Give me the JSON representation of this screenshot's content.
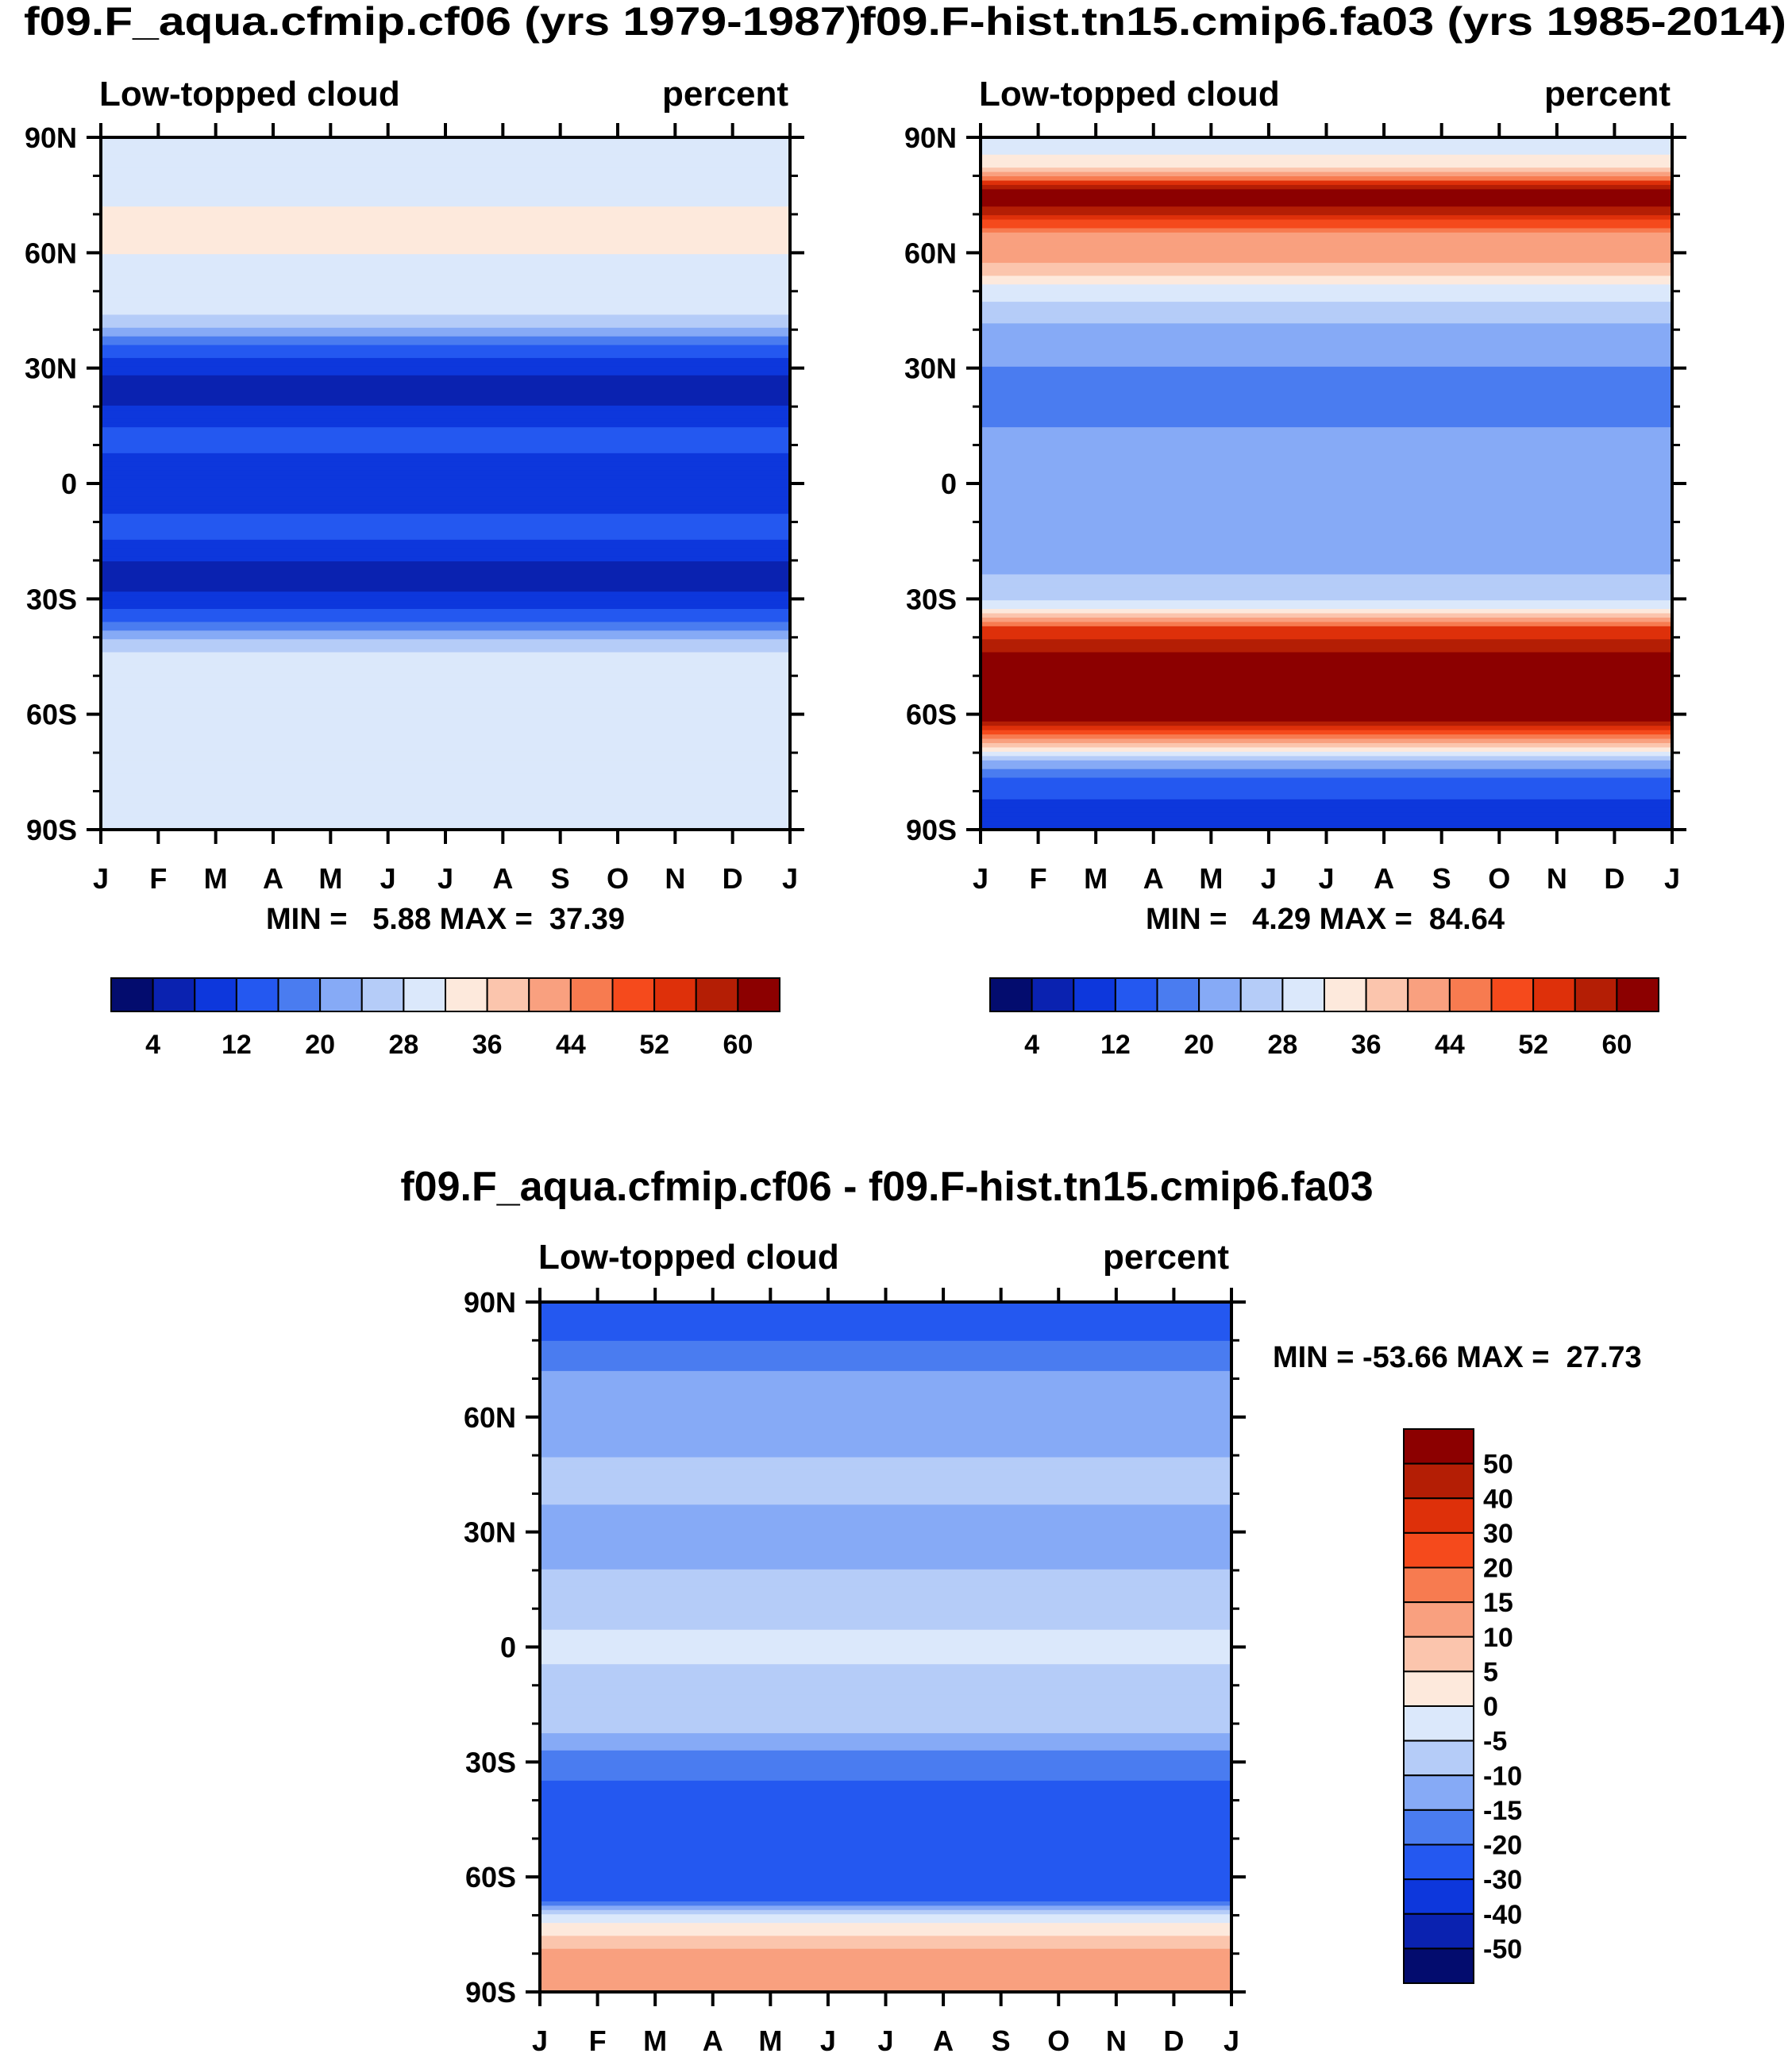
{
  "chart_data": [
    {
      "type": "heatmap",
      "title": "f09.F_aqua.cfmip.cf06 (yrs 1979-1987)",
      "left_label": "Low-topped cloud",
      "right_label": "percent",
      "x_tick_labels": [
        "J",
        "F",
        "M",
        "A",
        "M",
        "J",
        "J",
        "A",
        "S",
        "O",
        "N",
        "D",
        "J"
      ],
      "y_tick_labels": [
        "90N",
        "60N",
        "30N",
        "0",
        "30S",
        "60S",
        "90S"
      ],
      "ylim": [
        -90,
        90
      ],
      "stats": "MIN =   5.88 MAX =  37.39",
      "colorbar_labels": [
        "4",
        "12",
        "20",
        "28",
        "36",
        "44",
        "52",
        "60"
      ],
      "colorbar_colors": [
        "#030c6e",
        "#0a22b0",
        "#0d37dc",
        "#2458f0",
        "#4a7cf0",
        "#86aaf6",
        "#b5ccf8",
        "#dbe8fb",
        "#fde9dc",
        "#fbc5ad",
        "#f9a07f",
        "#f77b50",
        "#f54a1c",
        "#de300a",
        "#b41e05",
        "#8c0000"
      ],
      "zonal_profile": {
        "lat": [
          90,
          80,
          70,
          60,
          50,
          45,
          40,
          35,
          30,
          25,
          20,
          15,
          10,
          5,
          0,
          -5,
          -10,
          -15,
          -20,
          -25,
          -30,
          -35,
          -40,
          -45,
          -50,
          -60,
          -70,
          -80,
          -90
        ],
        "value": [
          29,
          30,
          32.5,
          32,
          31.5,
          30,
          23,
          15,
          9,
          6,
          8,
          12,
          13,
          11,
          10,
          11,
          13,
          12,
          8,
          6,
          9,
          15,
          23,
          30,
          31.5,
          32,
          31.5,
          30,
          29
        ]
      }
    },
    {
      "type": "heatmap",
      "title": "f09.F-hist.tn15.cmip6.fa03 (yrs 1985-2014)",
      "left_label": "Low-topped cloud",
      "right_label": "percent",
      "x_tick_labels": [
        "J",
        "F",
        "M",
        "A",
        "M",
        "J",
        "J",
        "A",
        "S",
        "O",
        "N",
        "D",
        "J"
      ],
      "y_tick_labels": [
        "90N",
        "60N",
        "30N",
        "0",
        "30S",
        "60S",
        "90S"
      ],
      "ylim": [
        -90,
        90
      ],
      "stats": "MIN =   4.29 MAX =  84.64",
      "colorbar_labels": [
        "4",
        "12",
        "20",
        "28",
        "36",
        "44",
        "52",
        "60"
      ],
      "colorbar_colors": [
        "#030c6e",
        "#0a22b0",
        "#0d37dc",
        "#2458f0",
        "#4a7cf0",
        "#86aaf6",
        "#b5ccf8",
        "#dbe8fb",
        "#fde9dc",
        "#fbc5ad",
        "#f9a07f",
        "#f77b50",
        "#f54a1c",
        "#de300a",
        "#b41e05",
        "#8c0000"
      ],
      "zonal_profile": {
        "lat": [
          90,
          82,
          75,
          70,
          65,
          60,
          55,
          50,
          45,
          40,
          35,
          30,
          20,
          10,
          0,
          -10,
          -20,
          -30,
          -35,
          -38,
          -42,
          -46,
          -52,
          -60,
          -64,
          -68,
          -72,
          -76,
          -80,
          -85,
          -90
        ],
        "value": [
          28,
          36,
          66,
          56,
          44,
          42,
          38,
          30,
          26,
          23,
          21,
          20,
          19,
          21,
          23,
          24,
          23,
          26,
          40,
          54,
          58,
          62,
          66,
          64,
          52,
          38,
          24,
          16,
          14,
          10,
          8
        ]
      }
    },
    {
      "type": "heatmap",
      "title": "f09.F_aqua.cfmip.cf06 - f09.F-hist.tn15.cmip6.fa03",
      "left_label": "Low-topped cloud",
      "right_label": "percent",
      "x_tick_labels": [
        "J",
        "F",
        "M",
        "A",
        "M",
        "J",
        "J",
        "A",
        "S",
        "O",
        "N",
        "D",
        "J"
      ],
      "y_tick_labels": [
        "90N",
        "60N",
        "30N",
        "0",
        "30S",
        "60S",
        "90S"
      ],
      "ylim": [
        -90,
        90
      ],
      "stats": "MIN = -53.66 MAX =  27.73",
      "colorbar_labels": [
        "50",
        "40",
        "30",
        "20",
        "15",
        "10",
        "5",
        "0",
        "-5",
        "-10",
        "-15",
        "-20",
        "-30",
        "-40",
        "-50"
      ],
      "colorbar_colors": [
        "#8c0000",
        "#b41e05",
        "#de300a",
        "#f54a1c",
        "#f77b50",
        "#f9a07f",
        "#fbc5ad",
        "#fde9dc",
        "#dbe8fb",
        "#b5ccf8",
        "#86aaf6",
        "#4a7cf0",
        "#2458f0",
        "#0d37dc",
        "#0a22b0",
        "#030c6e"
      ],
      "zonal_profile": {
        "lat": [
          90,
          80,
          70,
          60,
          50,
          40,
          30,
          20,
          10,
          0,
          -10,
          -20,
          -30,
          -40,
          -50,
          -60,
          -66,
          -70,
          -75,
          -80,
          -85,
          -90
        ],
        "value": [
          -25,
          -20,
          -14,
          -12,
          -10,
          -8,
          -14,
          -10,
          -6,
          -4,
          -6,
          -8,
          -18,
          -22,
          -24,
          -26,
          -24,
          -5,
          5,
          12,
          14,
          15
        ]
      }
    }
  ]
}
